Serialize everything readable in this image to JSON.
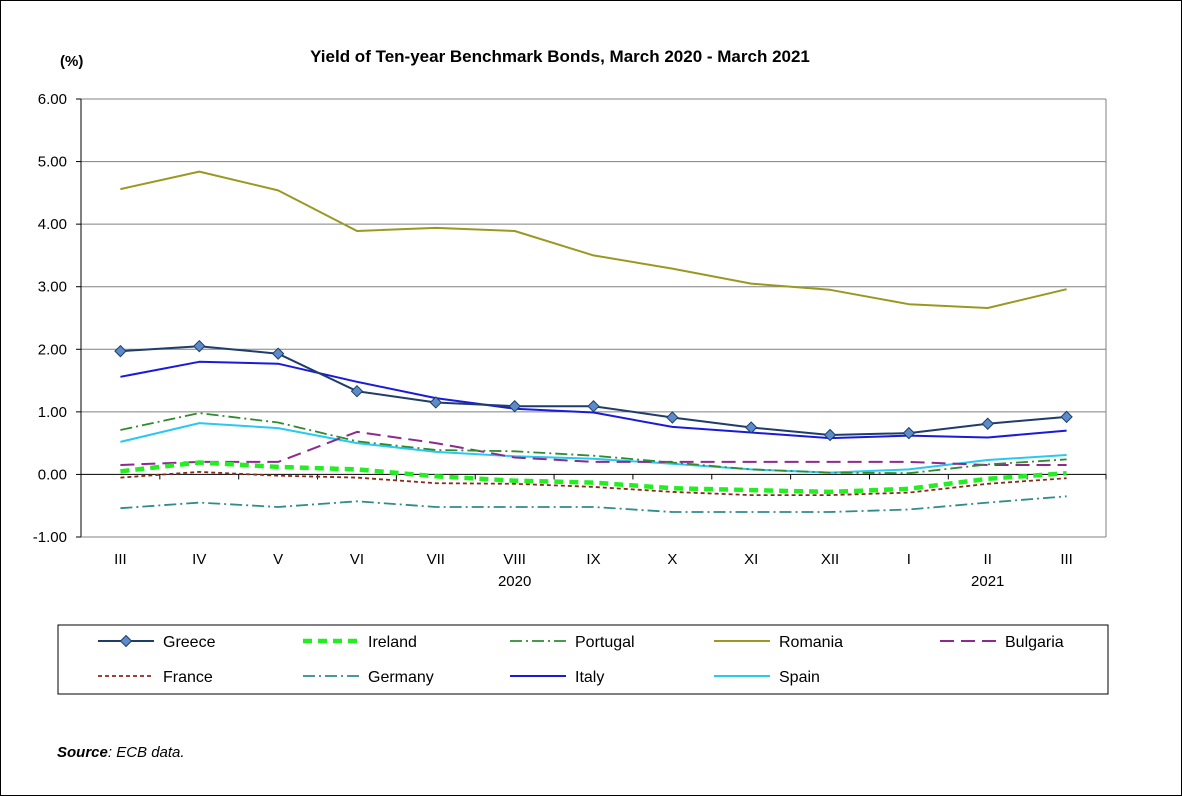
{
  "chart_data": {
    "type": "line",
    "title": "Yield of Ten-year Benchmark Bonds, March 2020 - March 2021",
    "unit_label": "(%)",
    "categories": [
      "III",
      "IV",
      "V",
      "VI",
      "VII",
      "VIII",
      "IX",
      "X",
      "XI",
      "XII",
      "I",
      "II",
      "III"
    ],
    "year_labels": [
      {
        "label": "2020",
        "index": 5
      },
      {
        "label": "2021",
        "index": 11
      }
    ],
    "ylim": [
      -1,
      6
    ],
    "yticks": [
      "-1.00",
      "0.00",
      "1.00",
      "2.00",
      "3.00",
      "4.00",
      "5.00",
      "6.00"
    ],
    "grid": true,
    "legend_position": "bottom",
    "series": [
      {
        "name": "Greece",
        "color": "#1F3D6B",
        "style": "solid-marker",
        "values": [
          1.97,
          2.05,
          1.93,
          1.33,
          1.15,
          1.09,
          1.09,
          0.91,
          0.75,
          0.63,
          0.66,
          0.81,
          0.92
        ]
      },
      {
        "name": "Ireland",
        "color": "#22EE22",
        "style": "thick-dash",
        "values": [
          0.05,
          0.19,
          0.12,
          0.08,
          -0.03,
          -0.1,
          -0.13,
          -0.22,
          -0.25,
          -0.28,
          -0.23,
          -0.07,
          0.02
        ]
      },
      {
        "name": "Portugal",
        "color": "#2E8B2E",
        "style": "dash-dot",
        "values": [
          0.71,
          0.98,
          0.83,
          0.53,
          0.39,
          0.37,
          0.3,
          0.19,
          0.08,
          0.03,
          0.02,
          0.16,
          0.24
        ]
      },
      {
        "name": "Romania",
        "color": "#999922",
        "style": "solid",
        "values": [
          4.56,
          4.84,
          4.54,
          3.89,
          3.94,
          3.89,
          3.5,
          3.29,
          3.05,
          2.95,
          2.72,
          2.66,
          2.96
        ]
      },
      {
        "name": "Bulgaria",
        "color": "#8E2A8E",
        "style": "long-dash",
        "values": [
          0.15,
          0.2,
          0.2,
          0.68,
          0.5,
          0.27,
          0.2,
          0.2,
          0.2,
          0.2,
          0.2,
          0.15,
          0.15
        ]
      },
      {
        "name": "France",
        "color": "#8B2A1A",
        "style": "short-dash",
        "values": [
          -0.05,
          0.04,
          -0.02,
          -0.05,
          -0.14,
          -0.15,
          -0.2,
          -0.28,
          -0.33,
          -0.33,
          -0.29,
          -0.15,
          -0.06
        ]
      },
      {
        "name": "Germany",
        "color": "#2E8C8C",
        "style": "dash-dot",
        "values": [
          -0.54,
          -0.45,
          -0.52,
          -0.43,
          -0.52,
          -0.52,
          -0.52,
          -0.6,
          -0.6,
          -0.6,
          -0.56,
          -0.45,
          -0.35
        ]
      },
      {
        "name": "Italy",
        "color": "#1A1ADD",
        "style": "solid",
        "values": [
          1.56,
          1.8,
          1.77,
          1.48,
          1.22,
          1.05,
          0.99,
          0.76,
          0.67,
          0.58,
          0.62,
          0.59,
          0.7
        ]
      },
      {
        "name": "Spain",
        "color": "#29C8F2",
        "style": "solid",
        "values": [
          0.52,
          0.82,
          0.74,
          0.5,
          0.36,
          0.29,
          0.25,
          0.17,
          0.08,
          0.03,
          0.08,
          0.23,
          0.31
        ]
      }
    ]
  },
  "source": {
    "label": "Source",
    "text": ": ECB data."
  }
}
